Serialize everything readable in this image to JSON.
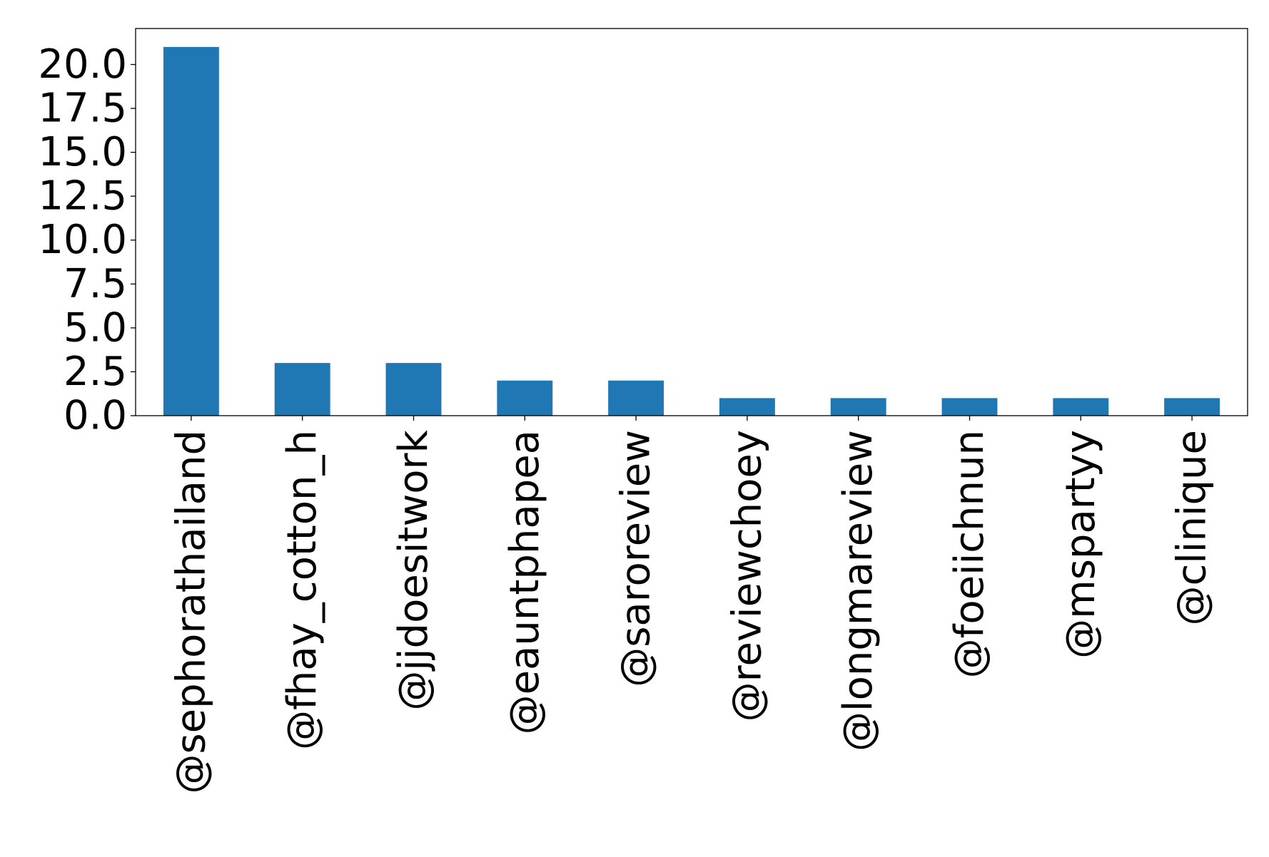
{
  "chart_data": {
    "type": "bar",
    "title": "",
    "xlabel": "",
    "ylabel": "",
    "categories": [
      "@sephorathailand",
      "@fhay_cotton_h",
      "@jjdoesitwork",
      "@eauntphapea",
      "@saroreview",
      "@reviewchoey",
      "@longmareview",
      "@foeiichnun",
      "@mspartyy",
      "@clinique"
    ],
    "values": [
      21,
      3,
      3,
      2,
      2,
      1,
      1,
      1,
      1,
      1
    ],
    "ylim": [
      0,
      22.05
    ],
    "yticks": [
      0.0,
      2.5,
      5.0,
      7.5,
      10.0,
      12.5,
      15.0,
      17.5,
      20.0
    ],
    "ytick_labels": [
      "0.0",
      "2.5",
      "5.0",
      "7.5",
      "10.0",
      "12.5",
      "15.0",
      "17.5",
      "20.0"
    ],
    "grid": false,
    "colors": {
      "bar": "#1f77b4",
      "axes": "#000000"
    }
  }
}
